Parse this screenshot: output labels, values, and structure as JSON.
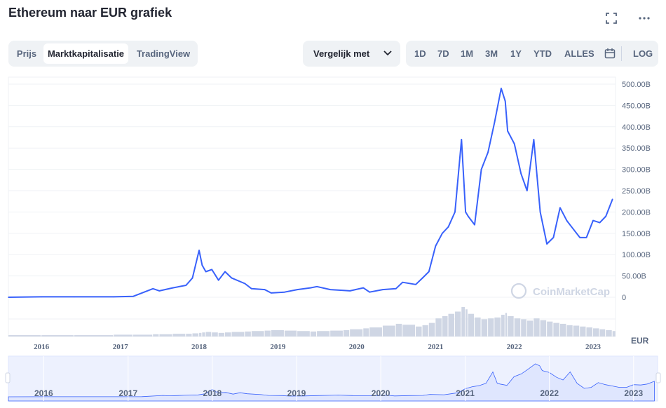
{
  "title": "Ethereum naar EUR grafiek",
  "header_icons": [
    "fullscreen-icon",
    "more-icon"
  ],
  "view_tabs": [
    {
      "label": "Prijs",
      "active": false
    },
    {
      "label": "Marktkapitalisatie",
      "active": true
    },
    {
      "label": "TradingView",
      "active": false
    }
  ],
  "compare": {
    "label": "Vergelijk met"
  },
  "ranges": [
    "1D",
    "7D",
    "1M",
    "3M",
    "1Y",
    "YTD",
    "ALLES"
  ],
  "log_label": "LOG",
  "watermark": "CoinMarketCap",
  "colors": {
    "line": "#3861fb",
    "volume": "#cfd6e4",
    "navigator_fill": "#dfe6fe",
    "grid": "#eff2f5"
  },
  "chart_data": {
    "type": "line",
    "series": [
      {
        "x": [
          "2015-08",
          "2016-01",
          "2016-06",
          "2016-12",
          "2017-03",
          "2017-06",
          "2017-07",
          "2017-09",
          "2017-11",
          "2017-12",
          "2018-01",
          "2018-01-15",
          "2018-02",
          "2018-03",
          "2018-04",
          "2018-05",
          "2018-06",
          "2018-08",
          "2018-09",
          "2018-11",
          "2018-12",
          "2019-02",
          "2019-04",
          "2019-06",
          "2019-07",
          "2019-09",
          "2019-11",
          "2019-12",
          "2020-02",
          "2020-03",
          "2020-05",
          "2020-07",
          "2020-08",
          "2020-10",
          "2020-11",
          "2020-12",
          "2021-01",
          "2021-02",
          "2021-03",
          "2021-04",
          "2021-05",
          "2021-05-20",
          "2021-06",
          "2021-07",
          "2021-08",
          "2021-09",
          "2021-10",
          "2021-11",
          "2021-11-20",
          "2021-12",
          "2022-01",
          "2022-02",
          "2022-03",
          "2022-04",
          "2022-05",
          "2022-06",
          "2022-07",
          "2022-08",
          "2022-09",
          "2022-10",
          "2022-11",
          "2022-12",
          "2023-01",
          "2023-02",
          "2023-03",
          "2023-04"
        ],
        "values": [
          0,
          1,
          1,
          1,
          2,
          20,
          15,
          22,
          28,
          45,
          110,
          75,
          60,
          65,
          40,
          60,
          45,
          32,
          20,
          18,
          10,
          12,
          18,
          22,
          25,
          18,
          16,
          15,
          22,
          12,
          18,
          20,
          35,
          30,
          45,
          60,
          120,
          150,
          165,
          200,
          370,
          200,
          190,
          170,
          300,
          340,
          410,
          490,
          460,
          390,
          360,
          290,
          250,
          370,
          200,
          125,
          140,
          210,
          180,
          160,
          140,
          140,
          180,
          175,
          190,
          230
        ]
      }
    ],
    "volume": [
      3,
      3,
      3,
      4,
      4,
      5,
      5,
      6,
      6,
      7,
      8,
      9,
      10,
      9,
      8,
      9,
      10,
      11,
      12,
      13,
      14,
      13,
      12,
      11,
      12,
      13,
      14,
      16,
      18,
      20,
      24,
      28,
      26,
      22,
      25,
      30,
      40,
      45,
      50,
      55,
      65,
      60,
      50,
      42,
      38,
      40,
      42,
      48,
      52,
      45,
      40,
      38,
      35,
      40,
      36,
      33,
      30,
      28,
      25,
      24,
      22,
      20,
      18,
      16,
      14,
      12
    ],
    "x_ticks": [
      "2016",
      "2017",
      "2018",
      "2019",
      "2020",
      "2021",
      "2022",
      "2023"
    ],
    "y_ticks": [
      "0",
      "50.00B",
      "100.00B",
      "150.00B",
      "200.00B",
      "250.00B",
      "300.00B",
      "350.00B",
      "400.00B",
      "450.00B",
      "500.00B"
    ],
    "ylim": [
      0,
      500
    ],
    "y_unit": "B",
    "ylabel": "EUR",
    "navigator_ticks": [
      "2016",
      "2017",
      "2018",
      "2019",
      "2020",
      "2021",
      "2022",
      "2023"
    ],
    "grid": true
  }
}
